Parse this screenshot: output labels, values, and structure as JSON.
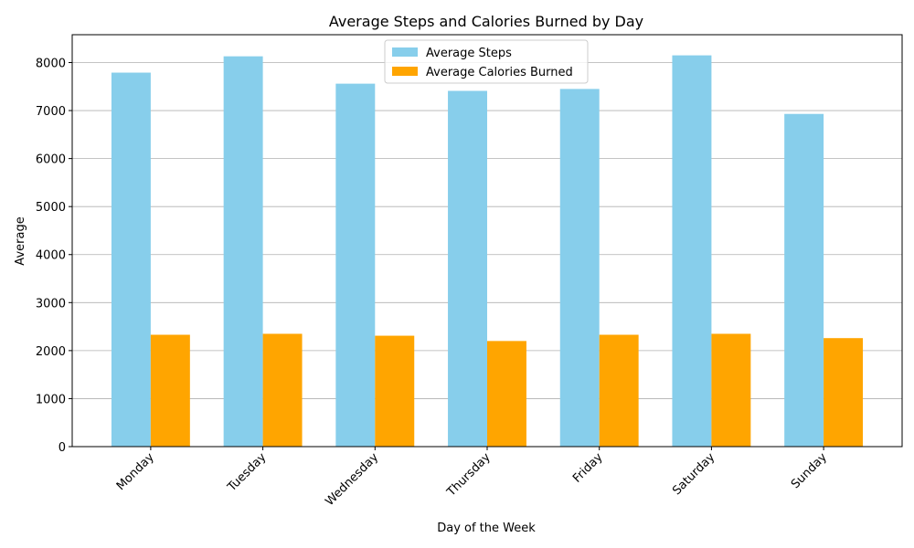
{
  "chart_data": {
    "type": "bar",
    "title": "Average Steps and Calories Burned by Day",
    "xlabel": "Day of the Week",
    "ylabel": "Average",
    "categories": [
      "Monday",
      "Tuesday",
      "Wednesday",
      "Thursday",
      "Friday",
      "Saturday",
      "Sunday"
    ],
    "series": [
      {
        "name": "Average Steps",
        "color": "#87ceeb",
        "values": [
          7790,
          8130,
          7560,
          7410,
          7450,
          8150,
          6930
        ]
      },
      {
        "name": "Average Calories Burned",
        "color": "#ffa500",
        "values": [
          2330,
          2350,
          2310,
          2200,
          2330,
          2350,
          2260
        ]
      }
    ],
    "ylim": [
      0,
      8580
    ],
    "yticks": [
      0,
      1000,
      2000,
      3000,
      4000,
      5000,
      6000,
      7000,
      8000
    ],
    "grid": "horizontal",
    "legend_position": "top-center"
  }
}
